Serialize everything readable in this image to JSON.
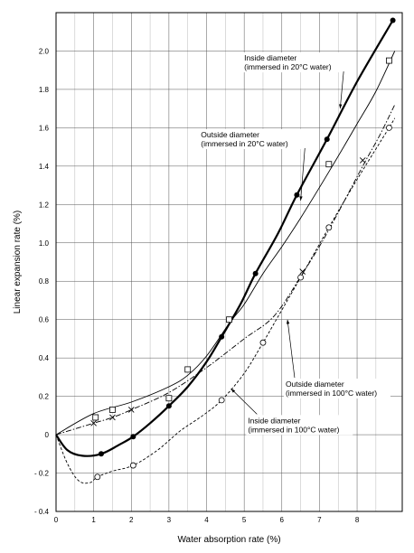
{
  "chart_data": {
    "type": "line",
    "title": "",
    "xlabel": "Water absorption rate (%)",
    "ylabel": "Linear expansion rate (%)",
    "xlim": [
      0,
      9.2
    ],
    "ylim": [
      -0.4,
      2.2
    ],
    "xticks": [
      0,
      1,
      2,
      3,
      4,
      5,
      6,
      7,
      8
    ],
    "yticks": [
      -0.4,
      -0.2,
      0,
      0.2,
      0.4,
      0.6,
      0.8,
      1.0,
      1.2,
      1.4,
      1.6,
      1.8,
      2.0
    ],
    "ytick_labels": [
      "- 0.4",
      "- 0.2",
      "0",
      "0.2",
      "0.4",
      "0.6",
      "0.8",
      "1.0",
      "1.2",
      "1.4",
      "1.6",
      "1.8",
      "2.0"
    ],
    "grid": true,
    "series": [
      {
        "name": "Inside diameter (immersed in 20°C water)",
        "marker": "filled-circle",
        "line": "thick-solid",
        "points": [
          [
            1.2,
            -0.1
          ],
          [
            2.05,
            -0.01
          ],
          [
            3.0,
            0.15
          ],
          [
            4.4,
            0.51
          ],
          [
            5.3,
            0.84
          ],
          [
            6.4,
            1.25
          ],
          [
            7.2,
            1.54
          ],
          [
            8.95,
            2.16
          ]
        ],
        "curve": [
          [
            0,
            0
          ],
          [
            0.3,
            -0.08
          ],
          [
            0.7,
            -0.11
          ],
          [
            1.2,
            -0.1
          ],
          [
            1.7,
            -0.05
          ],
          [
            2.05,
            -0.01
          ],
          [
            2.5,
            0.06
          ],
          [
            3.0,
            0.15
          ],
          [
            3.5,
            0.25
          ],
          [
            4.0,
            0.38
          ],
          [
            4.4,
            0.51
          ],
          [
            4.9,
            0.68
          ],
          [
            5.3,
            0.84
          ],
          [
            5.9,
            1.05
          ],
          [
            6.4,
            1.25
          ],
          [
            7.2,
            1.54
          ],
          [
            8.0,
            1.84
          ],
          [
            8.95,
            2.16
          ]
        ]
      },
      {
        "name": "Outside diameter (immersed in 20°C water)",
        "marker": "square",
        "line": "thin-solid",
        "points": [
          [
            1.05,
            0.09
          ],
          [
            1.5,
            0.13
          ],
          [
            3.0,
            0.19
          ],
          [
            3.5,
            0.34
          ],
          [
            4.6,
            0.6
          ],
          [
            7.25,
            1.41
          ],
          [
            8.85,
            1.95
          ]
        ],
        "curve": [
          [
            0,
            0
          ],
          [
            1.0,
            0.11
          ],
          [
            2.0,
            0.17
          ],
          [
            3.0,
            0.25
          ],
          [
            3.5,
            0.31
          ],
          [
            4.0,
            0.41
          ],
          [
            4.6,
            0.58
          ],
          [
            5.0,
            0.68
          ],
          [
            5.5,
            0.84
          ],
          [
            6.0,
            0.98
          ],
          [
            6.5,
            1.13
          ],
          [
            7.25,
            1.37
          ],
          [
            8.0,
            1.62
          ],
          [
            8.5,
            1.79
          ],
          [
            9.0,
            2.0
          ]
        ]
      },
      {
        "name": "Outside diameter (immersed in 100°C water)",
        "marker": "x",
        "line": "dash-dot",
        "points": [
          [
            1.0,
            0.06
          ],
          [
            1.5,
            0.09
          ],
          [
            2.0,
            0.13
          ],
          [
            6.55,
            0.85
          ],
          [
            8.15,
            1.43
          ]
        ],
        "curve": [
          [
            0,
            0
          ],
          [
            0.5,
            0.03
          ],
          [
            1.0,
            0.06
          ],
          [
            1.5,
            0.09
          ],
          [
            2.0,
            0.13
          ],
          [
            3.0,
            0.22
          ],
          [
            4.0,
            0.35
          ],
          [
            5.0,
            0.5
          ],
          [
            5.8,
            0.62
          ],
          [
            6.55,
            0.84
          ],
          [
            7.2,
            1.05
          ],
          [
            8.15,
            1.4
          ],
          [
            8.6,
            1.56
          ],
          [
            9.0,
            1.72
          ]
        ]
      },
      {
        "name": "Inside diameter (immersed in 100°C water)",
        "marker": "open-circle",
        "line": "dashed",
        "points": [
          [
            1.1,
            -0.22
          ],
          [
            2.05,
            -0.16
          ],
          [
            4.4,
            0.18
          ],
          [
            5.5,
            0.48
          ],
          [
            6.5,
            0.82
          ],
          [
            7.25,
            1.08
          ],
          [
            8.85,
            1.6
          ]
        ],
        "curve": [
          [
            0,
            0
          ],
          [
            0.3,
            -0.15
          ],
          [
            0.6,
            -0.24
          ],
          [
            0.9,
            -0.25
          ],
          [
            1.1,
            -0.22
          ],
          [
            1.5,
            -0.19
          ],
          [
            2.05,
            -0.16
          ],
          [
            2.7,
            -0.08
          ],
          [
            3.3,
            0.02
          ],
          [
            3.9,
            0.1
          ],
          [
            4.4,
            0.18
          ],
          [
            5.0,
            0.32
          ],
          [
            5.5,
            0.48
          ],
          [
            6.0,
            0.65
          ],
          [
            6.5,
            0.82
          ],
          [
            7.25,
            1.08
          ],
          [
            8.0,
            1.33
          ],
          [
            8.85,
            1.6
          ],
          [
            9.0,
            1.65
          ]
        ]
      }
    ],
    "annotations": [
      {
        "lines": [
          "Inside diameter",
          "(immersed in 20°C water)"
        ],
        "anchor": [
          5.0,
          1.95
        ],
        "target": [
          7.55,
          1.7
        ]
      },
      {
        "lines": [
          "Outside diameter",
          "(immersed in 20°C water)"
        ],
        "anchor": [
          3.85,
          1.55
        ],
        "target": [
          6.5,
          1.22
        ]
      },
      {
        "lines": [
          "Outside diameter",
          "(immersed in 100°C water)"
        ],
        "anchor": [
          6.1,
          0.25
        ],
        "target": [
          6.15,
          0.6
        ]
      },
      {
        "lines": [
          "Inside diameter",
          "(immersed in 100°C water)"
        ],
        "anchor": [
          5.1,
          0.06
        ],
        "target": [
          4.65,
          0.24
        ]
      }
    ]
  }
}
